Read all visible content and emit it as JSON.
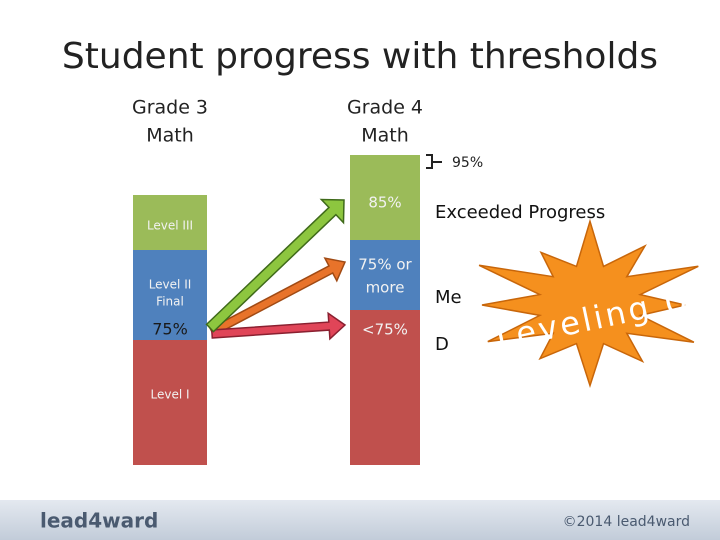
{
  "title": "Student progress with thresholds",
  "grade3": {
    "heading": [
      "Grade 3",
      "Math"
    ],
    "level3": "Level III",
    "level2": [
      "Level II",
      "Final"
    ],
    "threshold": "75%",
    "level1": "Level I"
  },
  "grade4": {
    "heading": [
      "Grade 4",
      "Math"
    ],
    "exceeded": "85%",
    "met": [
      "75% or",
      "more"
    ],
    "below": "<75%"
  },
  "annotations": {
    "bracket": "95%",
    "exceeded": "Exceeded Progress",
    "met": "Me",
    "did_not": "D"
  },
  "callout": "Leveling Up",
  "footer": {
    "logo": "lead4ward",
    "copyright": "©2014 lead4ward"
  }
}
